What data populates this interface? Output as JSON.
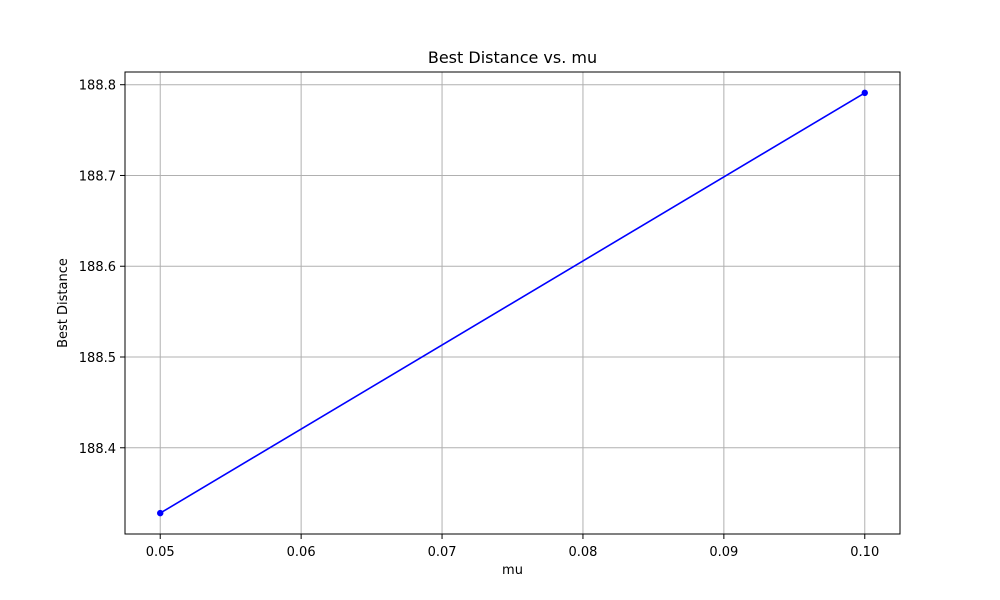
{
  "chart_data": {
    "type": "line",
    "title": "Best Distance vs. mu",
    "xlabel": "mu",
    "ylabel": "Best Distance",
    "x": [
      0.05,
      0.1
    ],
    "series": [
      {
        "values": [
          188.328,
          188.791
        ],
        "color": "#0000ff",
        "marker": "circle"
      }
    ],
    "xlim": [
      0.0475,
      0.1025
    ],
    "ylim": [
      188.305,
      188.814
    ],
    "xticks": [
      0.05,
      0.06,
      0.07,
      0.08,
      0.09,
      0.1
    ],
    "xtick_labels": [
      "0.05",
      "0.06",
      "0.07",
      "0.08",
      "0.09",
      "0.10"
    ],
    "yticks": [
      188.4,
      188.5,
      188.6,
      188.7,
      188.8
    ],
    "ytick_labels": [
      "188.4",
      "188.5",
      "188.6",
      "188.7",
      "188.8"
    ],
    "grid": true,
    "grid_color": "#b0b0b0",
    "frame_color": "#000000"
  }
}
